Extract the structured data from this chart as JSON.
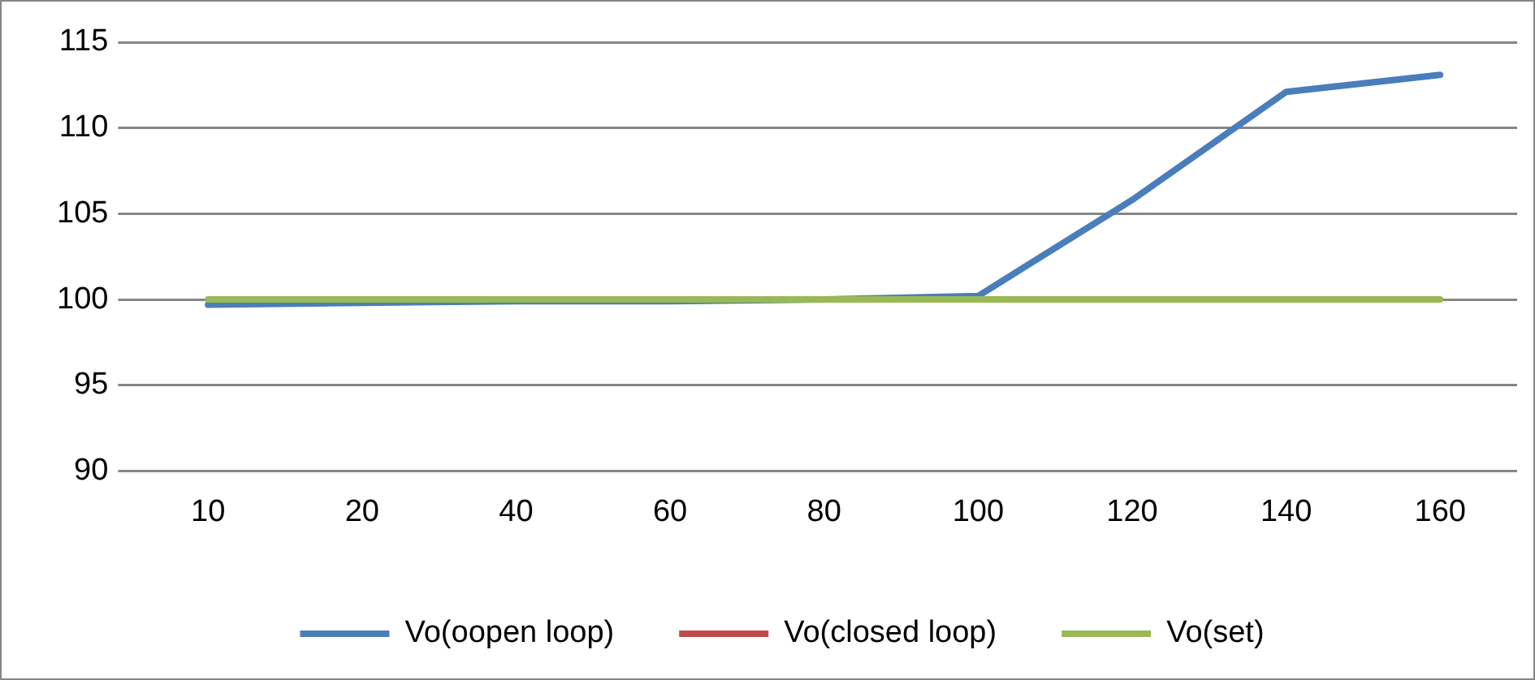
{
  "chart_data": {
    "type": "line",
    "categories": [
      "10",
      "20",
      "40",
      "60",
      "80",
      "100",
      "120",
      "140",
      "160"
    ],
    "series": [
      {
        "name": "Vo(oopen loop)",
        "color": "#4a7ebb",
        "values": [
          99.7,
          99.8,
          99.9,
          99.9,
          100,
          100.2,
          105.8,
          112.1,
          113.1
        ]
      },
      {
        "name": "Vo(closed loop)",
        "color": "#be4b48",
        "values": [
          null,
          null,
          null,
          null,
          null,
          null,
          null,
          null,
          null
        ]
      },
      {
        "name": "Vo(set)",
        "color": "#98b954",
        "values": [
          100,
          100,
          100,
          100,
          100,
          100,
          100,
          100,
          100
        ]
      }
    ],
    "ylim": [
      90,
      115
    ],
    "yticks": [
      90,
      95,
      100,
      105,
      110,
      115
    ],
    "grid": "y",
    "legend": "bottom",
    "marker": "none",
    "line_style": "solid"
  }
}
